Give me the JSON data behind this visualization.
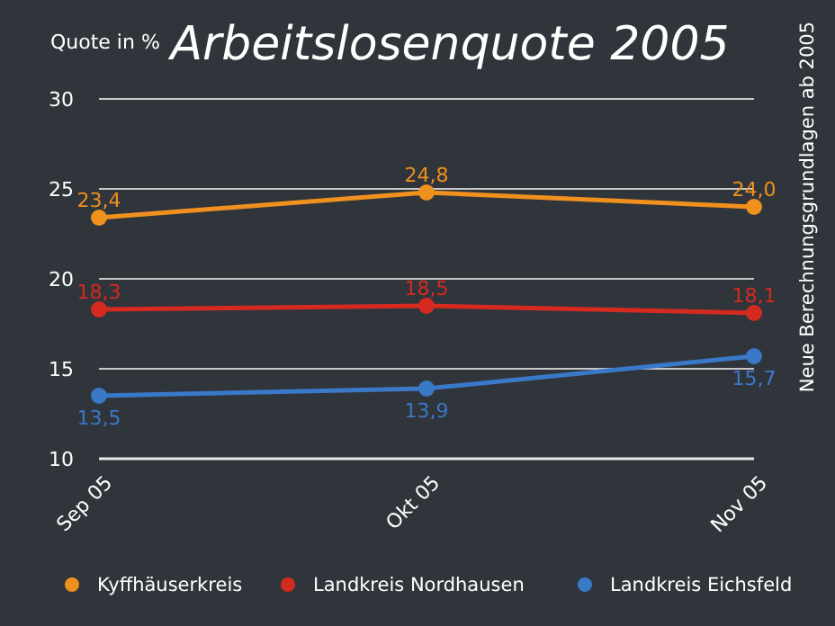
{
  "chart_data": {
    "type": "line",
    "title": "Arbeitslosenquote 2005",
    "ylabel": "Quote in %",
    "categories": [
      "Sep 05",
      "Okt 05",
      "Nov 05"
    ],
    "series": [
      {
        "name": "Kyffhäuserkreis",
        "color": "#f0901e",
        "values": [
          23.4,
          24.8,
          24.0
        ],
        "value_labels": [
          "23,4",
          "24,8",
          "24,0"
        ]
      },
      {
        "name": "Landkreis Nordhausen",
        "color": "#d42a20",
        "values": [
          18.3,
          18.5,
          18.1
        ],
        "value_labels": [
          "18,3",
          "18,5",
          "18,1"
        ]
      },
      {
        "name": "Landkreis Eichsfeld",
        "color": "#3a78c8",
        "values": [
          13.5,
          13.9,
          15.7
        ],
        "value_labels": [
          "13,5",
          "13,9",
          "15,7"
        ]
      }
    ],
    "ylim": [
      10,
      30
    ],
    "yticks": [
      10,
      15,
      20,
      25,
      30
    ],
    "grid": "y",
    "legend": "bottom",
    "marker": "circle",
    "line_style": "solid",
    "annotations": [
      "Neue Berechnungsgrundlagen ab 2005"
    ]
  }
}
